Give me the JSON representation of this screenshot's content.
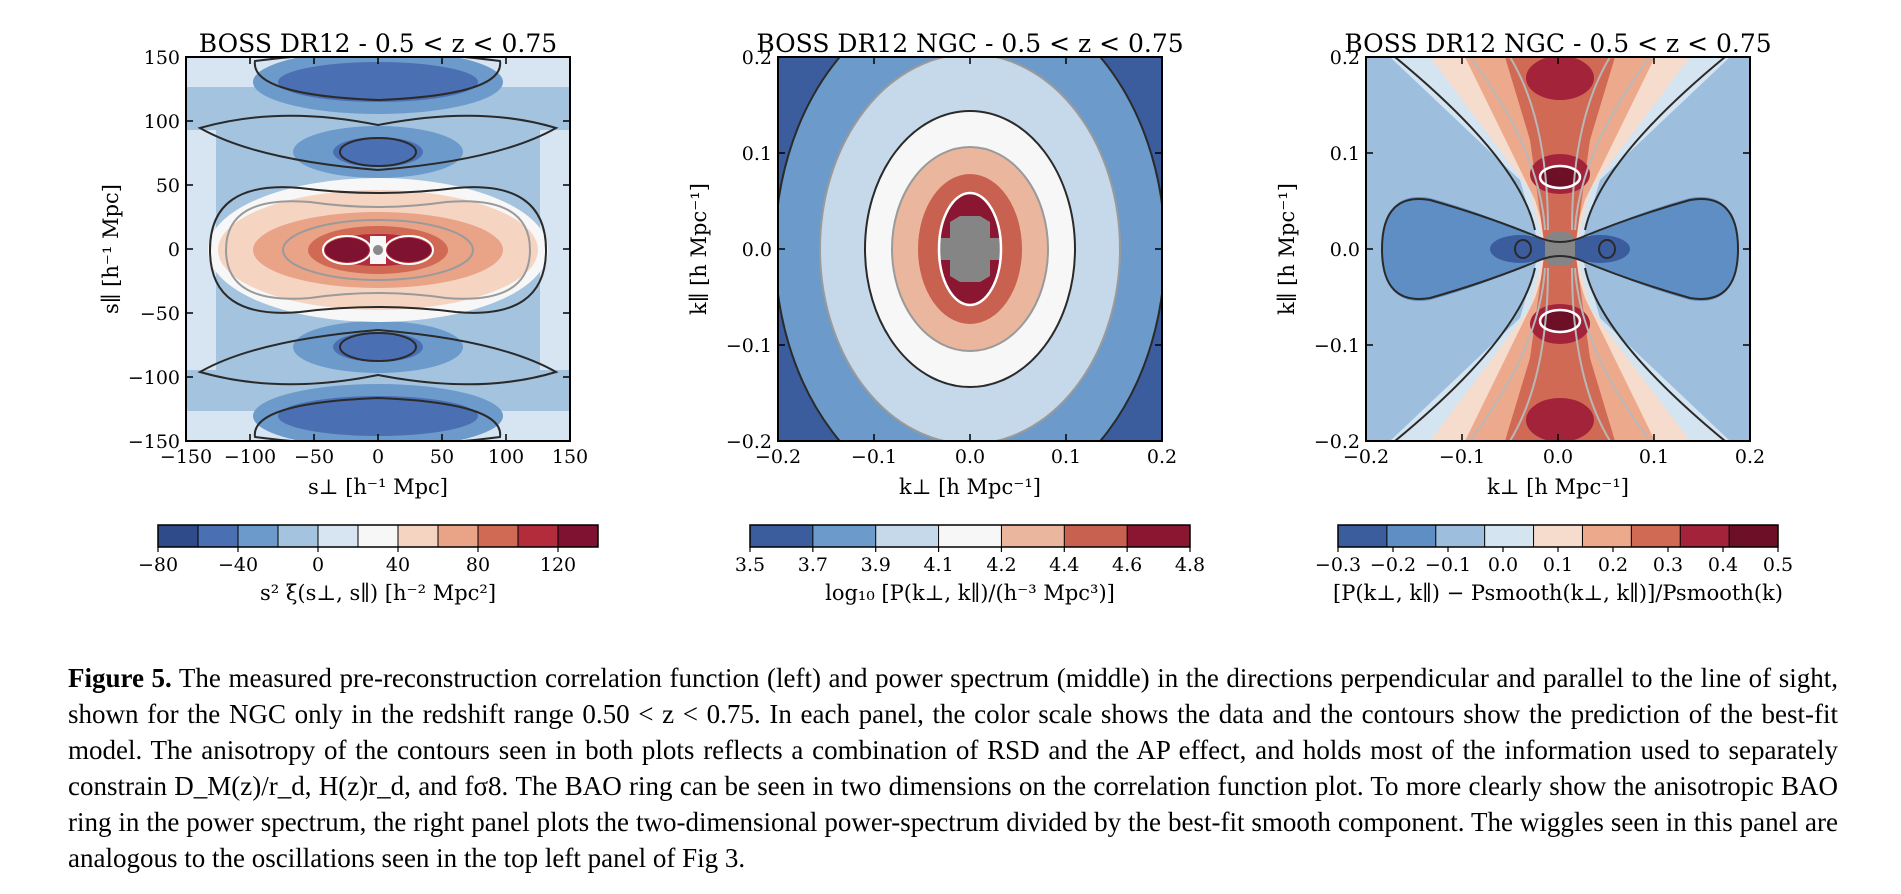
{
  "chart_data": [
    {
      "type": "heatmap",
      "title": "BOSS DR12 - 0.5 < z < 0.75",
      "xlabel": "s⊥ [h⁻¹ Mpc]",
      "ylabel": "s∥ [h⁻¹ Mpc]",
      "xlim": [
        -150,
        150
      ],
      "ylim": [
        -150,
        150
      ],
      "xticks": [
        "−150",
        "−100",
        "−50",
        "0",
        "50",
        "100",
        "150"
      ],
      "yticks": [
        "−150",
        "−100",
        "−50",
        "0",
        "50",
        "100",
        "150"
      ],
      "colorbar": {
        "label": "s² ξ(s⊥, s∥) [h⁻² Mpc²]",
        "ticks": [
          "−80",
          "−40",
          "0",
          "40",
          "80",
          "120"
        ],
        "levels": [
          -80,
          -60,
          -40,
          -20,
          0,
          20,
          40,
          60,
          80,
          100,
          120,
          140
        ],
        "colors": [
          "#2f4b8a",
          "#4a6fb3",
          "#6c9bcb",
          "#a4c3df",
          "#d6e5f1",
          "#f7f7f7",
          "#f6d4c2",
          "#e9a387",
          "#d06a55",
          "#b32c3b",
          "#7f1230"
        ]
      }
    },
    {
      "type": "heatmap",
      "title": "BOSS DR12 NGC - 0.5 < z < 0.75",
      "xlabel": "k⊥ [h Mpc⁻¹]",
      "ylabel": "k∥ [h Mpc⁻¹]",
      "xlim": [
        -0.2,
        0.2
      ],
      "ylim": [
        -0.2,
        0.2
      ],
      "xticks": [
        "−0.2",
        "−0.1",
        "0.0",
        "0.1",
        "0.2"
      ],
      "yticks": [
        "−0.2",
        "−0.1",
        "0.0",
        "0.1",
        "0.2"
      ],
      "colorbar": {
        "label": "log₁₀ [P(k⊥, k∥)/(h⁻³ Mpc³)]",
        "ticks": [
          "3.5",
          "3.7",
          "3.9",
          "4.1",
          "4.2",
          "4.4",
          "4.6",
          "4.8"
        ],
        "levels": [
          3.5,
          3.7,
          3.9,
          4.1,
          4.2,
          4.4,
          4.6,
          4.8
        ],
        "colors": [
          "#3b5c9d",
          "#6c9bcb",
          "#c6d9ea",
          "#f7f7f7",
          "#eab79e",
          "#c8614f",
          "#8a1631"
        ]
      }
    },
    {
      "type": "heatmap",
      "title": "BOSS DR12 NGC - 0.5 < z < 0.75",
      "xlabel": "k⊥ [h Mpc⁻¹]",
      "ylabel": "k∥ [h Mpc⁻¹]",
      "xlim": [
        -0.2,
        0.2
      ],
      "ylim": [
        -0.2,
        0.2
      ],
      "xticks": [
        "−0.2",
        "−0.1",
        "0.0",
        "0.1",
        "0.2"
      ],
      "yticks": [
        "−0.2",
        "−0.1",
        "0.0",
        "0.1",
        "0.2"
      ],
      "colorbar": {
        "label": "[P(k⊥, k∥) − Psmooth(k⊥, k∥)]/Psmooth(k)",
        "ticks": [
          "−0.3",
          "−0.2",
          "−0.1",
          "0.0",
          "0.1",
          "0.2",
          "0.3",
          "0.4",
          "0.5"
        ],
        "levels": [
          -0.3,
          -0.2,
          -0.1,
          0.0,
          0.1,
          0.2,
          0.3,
          0.4,
          0.5
        ],
        "colors": [
          "#3b5c9d",
          "#5e8ec4",
          "#9dbfdd",
          "#d4e4f0",
          "#f6dccd",
          "#eda98c",
          "#d06a55",
          "#a3243a",
          "#6e0f28"
        ]
      }
    }
  ],
  "caption": {
    "label": "Figure 5.",
    "text": "The measured pre-reconstruction correlation function (left) and power spectrum (middle) in the directions perpendicular and parallel to the line of sight, shown for the NGC only in the redshift range 0.50 < z < 0.75. In each panel, the color scale shows the data and the contours show the prediction of the best-fit model. The anisotropy of the contours seen in both plots reflects a combination of RSD and the AP effect, and holds most of the information used to separately constrain D_M(z)/r_d, H(z)r_d, and fσ8. The BAO ring can be seen in two dimensions on the correlation function plot. To more clearly show the anisotropic BAO ring in the power spectrum, the right panel plots the two-dimensional power-spectrum divided by the best-fit smooth component. The wiggles seen in this panel are analogous to the oscillations seen in the top left panel of Fig 3."
  }
}
